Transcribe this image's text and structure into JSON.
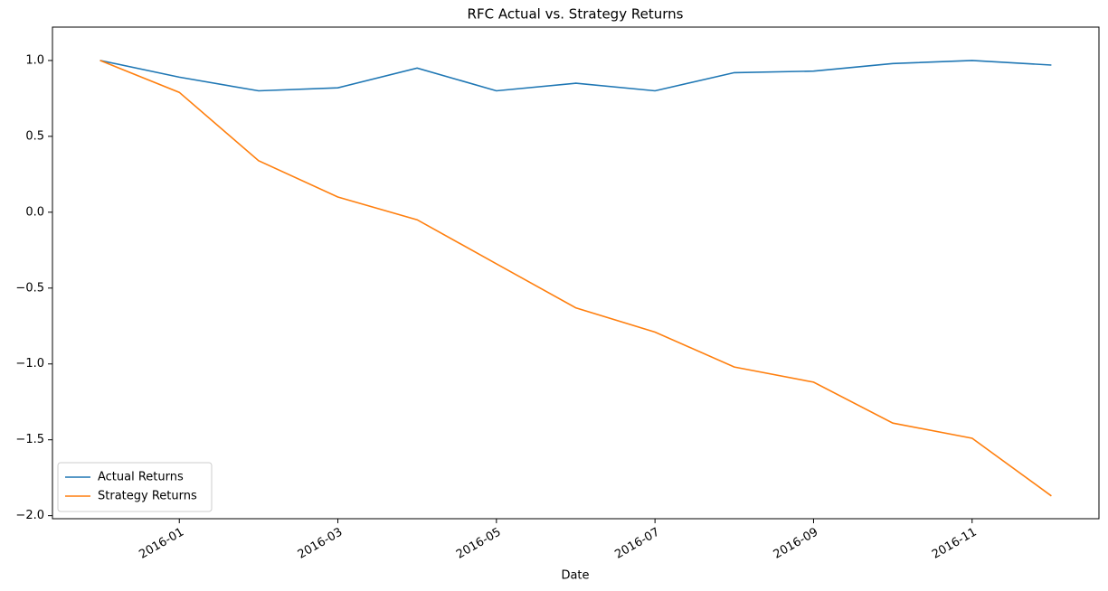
{
  "chart_data": {
    "type": "line",
    "title": "RFC Actual vs. Strategy Returns",
    "x_label": "Date",
    "x": [
      "2015-12",
      "2016-01",
      "2016-02",
      "2016-03",
      "2016-04",
      "2016-05",
      "2016-06",
      "2016-07",
      "2016-08",
      "2016-09",
      "2016-10",
      "2016-11",
      "2016-12"
    ],
    "series": [
      {
        "name": "Actual Returns",
        "color": "#1f77b4",
        "values": [
          1.0,
          0.89,
          0.8,
          0.82,
          0.95,
          0.8,
          0.85,
          0.8,
          0.92,
          0.93,
          0.98,
          1.0,
          0.97
        ]
      },
      {
        "name": "Strategy Returns",
        "color": "#ff7f0e",
        "values": [
          1.0,
          0.79,
          0.34,
          0.1,
          -0.05,
          -0.34,
          -0.63,
          -0.79,
          -1.02,
          -1.12,
          -1.39,
          -1.49,
          -1.87
        ]
      }
    ],
    "ylim": [
      -2.02,
      1.22
    ],
    "yticks": [
      {
        "value": -2,
        "label": "−2.0"
      },
      {
        "value": -1.5,
        "label": "−1.5"
      },
      {
        "value": -1,
        "label": "−1.0"
      },
      {
        "value": -0.5,
        "label": "−0.5"
      },
      {
        "value": 0,
        "label": "0.0"
      },
      {
        "value": 0.5,
        "label": "0.5"
      },
      {
        "value": 1,
        "label": "1.0"
      }
    ],
    "xticks": [
      "2016-01",
      "2016-03",
      "2016-05",
      "2016-07",
      "2016-09",
      "2016-11"
    ],
    "legend": "lower left",
    "grid": false
  }
}
